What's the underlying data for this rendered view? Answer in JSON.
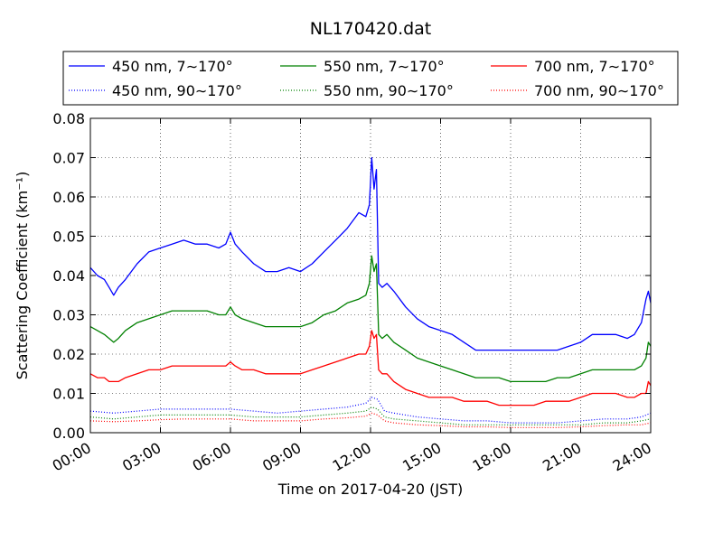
{
  "chart_data": {
    "type": "line",
    "title": "NL170420.dat",
    "xlabel": "Time on 2017-04-20 (JST)",
    "ylabel": "Scattering Coefficient (km⁻¹)",
    "x_unit": "hours",
    "xlim": [
      0,
      24
    ],
    "ylim": [
      0,
      0.08
    ],
    "grid": true,
    "legend_position": "top",
    "x_ticks": [
      {
        "value": 0,
        "label": "00:00"
      },
      {
        "value": 3,
        "label": "03:00"
      },
      {
        "value": 6,
        "label": "06:00"
      },
      {
        "value": 9,
        "label": "09:00"
      },
      {
        "value": 12,
        "label": "12:00"
      },
      {
        "value": 15,
        "label": "15:00"
      },
      {
        "value": 18,
        "label": "18:00"
      },
      {
        "value": 21,
        "label": "21:00"
      },
      {
        "value": 24,
        "label": "24:00"
      }
    ],
    "y_ticks": [
      {
        "value": 0,
        "label": "0.00"
      },
      {
        "value": 0.01,
        "label": "0.01"
      },
      {
        "value": 0.02,
        "label": "0.02"
      },
      {
        "value": 0.03,
        "label": "0.03"
      },
      {
        "value": 0.04,
        "label": "0.04"
      },
      {
        "value": 0.05,
        "label": "0.05"
      },
      {
        "value": 0.06,
        "label": "0.06"
      },
      {
        "value": 0.07,
        "label": "0.07"
      },
      {
        "value": 0.08,
        "label": "0.08"
      }
    ],
    "series": [
      {
        "name": "450 nm, 7∼170°",
        "color": "#0000ff",
        "style": "solid",
        "x": [
          0,
          0.3,
          0.6,
          0.8,
          1.0,
          1.2,
          1.5,
          2.0,
          2.5,
          3.0,
          3.5,
          4.0,
          4.5,
          5.0,
          5.5,
          5.8,
          6.0,
          6.2,
          6.5,
          7.0,
          7.5,
          8.0,
          8.5,
          9.0,
          9.5,
          10.0,
          10.5,
          11.0,
          11.5,
          11.8,
          11.95,
          12.05,
          12.15,
          12.25,
          12.35,
          12.5,
          12.7,
          13.0,
          13.5,
          14.0,
          14.5,
          15.0,
          15.5,
          16.0,
          16.5,
          17.0,
          17.5,
          18.0,
          18.5,
          19.0,
          19.5,
          20.0,
          20.5,
          21.0,
          21.5,
          22.0,
          22.5,
          23.0,
          23.3,
          23.6,
          23.8,
          23.9,
          24.0
        ],
        "y": [
          0.042,
          0.04,
          0.039,
          0.037,
          0.035,
          0.037,
          0.039,
          0.043,
          0.046,
          0.047,
          0.048,
          0.049,
          0.048,
          0.048,
          0.047,
          0.048,
          0.051,
          0.048,
          0.046,
          0.043,
          0.041,
          0.041,
          0.042,
          0.041,
          0.043,
          0.046,
          0.049,
          0.052,
          0.056,
          0.055,
          0.058,
          0.07,
          0.062,
          0.067,
          0.038,
          0.037,
          0.038,
          0.036,
          0.032,
          0.029,
          0.027,
          0.026,
          0.025,
          0.023,
          0.021,
          0.021,
          0.021,
          0.021,
          0.021,
          0.021,
          0.021,
          0.021,
          0.022,
          0.023,
          0.025,
          0.025,
          0.025,
          0.024,
          0.025,
          0.028,
          0.034,
          0.036,
          0.033
        ]
      },
      {
        "name": "550 nm, 7∼170°",
        "color": "#008000",
        "style": "solid",
        "x": [
          0,
          0.3,
          0.6,
          0.8,
          1.0,
          1.2,
          1.5,
          2.0,
          2.5,
          3.0,
          3.5,
          4.0,
          4.5,
          5.0,
          5.5,
          5.8,
          6.0,
          6.2,
          6.5,
          7.0,
          7.5,
          8.0,
          8.5,
          9.0,
          9.5,
          10.0,
          10.5,
          11.0,
          11.5,
          11.8,
          11.95,
          12.05,
          12.15,
          12.25,
          12.35,
          12.5,
          12.7,
          13.0,
          13.5,
          14.0,
          14.5,
          15.0,
          15.5,
          16.0,
          16.5,
          17.0,
          17.5,
          18.0,
          18.5,
          19.0,
          19.5,
          20.0,
          20.5,
          21.0,
          21.5,
          22.0,
          22.5,
          23.0,
          23.3,
          23.6,
          23.8,
          23.9,
          24.0
        ],
        "y": [
          0.027,
          0.026,
          0.025,
          0.024,
          0.023,
          0.024,
          0.026,
          0.028,
          0.029,
          0.03,
          0.031,
          0.031,
          0.031,
          0.031,
          0.03,
          0.03,
          0.032,
          0.03,
          0.029,
          0.028,
          0.027,
          0.027,
          0.027,
          0.027,
          0.028,
          0.03,
          0.031,
          0.033,
          0.034,
          0.035,
          0.038,
          0.045,
          0.041,
          0.043,
          0.025,
          0.024,
          0.025,
          0.023,
          0.021,
          0.019,
          0.018,
          0.017,
          0.016,
          0.015,
          0.014,
          0.014,
          0.014,
          0.013,
          0.013,
          0.013,
          0.013,
          0.014,
          0.014,
          0.015,
          0.016,
          0.016,
          0.016,
          0.016,
          0.016,
          0.017,
          0.019,
          0.023,
          0.022
        ]
      },
      {
        "name": "700 nm, 7∼170°",
        "color": "#ff0000",
        "style": "solid",
        "x": [
          0,
          0.3,
          0.6,
          0.8,
          1.0,
          1.2,
          1.5,
          2.0,
          2.5,
          3.0,
          3.5,
          4.0,
          4.5,
          5.0,
          5.5,
          5.8,
          6.0,
          6.2,
          6.5,
          7.0,
          7.5,
          8.0,
          8.5,
          9.0,
          9.5,
          10.0,
          10.5,
          11.0,
          11.5,
          11.8,
          11.95,
          12.05,
          12.15,
          12.25,
          12.35,
          12.5,
          12.7,
          13.0,
          13.5,
          14.0,
          14.5,
          15.0,
          15.5,
          16.0,
          16.5,
          17.0,
          17.5,
          18.0,
          18.5,
          19.0,
          19.5,
          20.0,
          20.5,
          21.0,
          21.5,
          22.0,
          22.5,
          23.0,
          23.3,
          23.6,
          23.8,
          23.9,
          24.0
        ],
        "y": [
          0.015,
          0.014,
          0.014,
          0.013,
          0.013,
          0.013,
          0.014,
          0.015,
          0.016,
          0.016,
          0.017,
          0.017,
          0.017,
          0.017,
          0.017,
          0.017,
          0.018,
          0.017,
          0.016,
          0.016,
          0.015,
          0.015,
          0.015,
          0.015,
          0.016,
          0.017,
          0.018,
          0.019,
          0.02,
          0.02,
          0.022,
          0.026,
          0.024,
          0.025,
          0.016,
          0.015,
          0.015,
          0.013,
          0.011,
          0.01,
          0.009,
          0.009,
          0.009,
          0.008,
          0.008,
          0.008,
          0.007,
          0.007,
          0.007,
          0.007,
          0.008,
          0.008,
          0.008,
          0.009,
          0.01,
          0.01,
          0.01,
          0.009,
          0.009,
          0.01,
          0.01,
          0.013,
          0.012
        ]
      },
      {
        "name": "450 nm, 90∼170°",
        "color": "#0000ff",
        "style": "dotted",
        "x": [
          0,
          1.0,
          2.0,
          3.0,
          4.0,
          5.0,
          6.0,
          7.0,
          8.0,
          9.0,
          10.0,
          11.0,
          11.8,
          12.05,
          12.3,
          12.6,
          13.0,
          14.0,
          15.0,
          16.0,
          17.0,
          18.0,
          19.0,
          20.0,
          21.0,
          22.0,
          23.0,
          23.6,
          24.0
        ],
        "y": [
          0.0055,
          0.005,
          0.0055,
          0.006,
          0.006,
          0.006,
          0.006,
          0.0055,
          0.005,
          0.0055,
          0.006,
          0.0065,
          0.0075,
          0.009,
          0.0085,
          0.0055,
          0.005,
          0.004,
          0.0035,
          0.003,
          0.003,
          0.0025,
          0.0025,
          0.0025,
          0.003,
          0.0035,
          0.0035,
          0.004,
          0.005
        ]
      },
      {
        "name": "550 nm, 90∼170°",
        "color": "#008000",
        "style": "dotted",
        "x": [
          0,
          1.0,
          2.0,
          3.0,
          4.0,
          5.0,
          6.0,
          7.0,
          8.0,
          9.0,
          10.0,
          11.0,
          11.8,
          12.05,
          12.3,
          12.6,
          13.0,
          14.0,
          15.0,
          16.0,
          17.0,
          18.0,
          19.0,
          20.0,
          21.0,
          22.0,
          23.0,
          23.6,
          24.0
        ],
        "y": [
          0.004,
          0.0035,
          0.004,
          0.0045,
          0.0045,
          0.0045,
          0.0045,
          0.004,
          0.004,
          0.004,
          0.0045,
          0.005,
          0.0055,
          0.0065,
          0.006,
          0.004,
          0.0035,
          0.003,
          0.0025,
          0.002,
          0.002,
          0.002,
          0.002,
          0.002,
          0.002,
          0.0025,
          0.0025,
          0.003,
          0.0035
        ]
      },
      {
        "name": "700 nm, 90∼170°",
        "color": "#ff0000",
        "style": "dotted",
        "x": [
          0,
          1.0,
          2.0,
          3.0,
          4.0,
          5.0,
          6.0,
          7.0,
          8.0,
          9.0,
          10.0,
          11.0,
          11.8,
          12.05,
          12.3,
          12.6,
          13.0,
          14.0,
          15.0,
          16.0,
          17.0,
          18.0,
          19.0,
          20.0,
          21.0,
          22.0,
          23.0,
          23.6,
          24.0
        ],
        "y": [
          0.003,
          0.0028,
          0.003,
          0.0033,
          0.0035,
          0.0035,
          0.0035,
          0.003,
          0.003,
          0.003,
          0.0035,
          0.0038,
          0.0042,
          0.005,
          0.0045,
          0.003,
          0.0025,
          0.002,
          0.0018,
          0.0015,
          0.0015,
          0.0013,
          0.0013,
          0.0013,
          0.0015,
          0.0018,
          0.002,
          0.002,
          0.0025
        ]
      }
    ]
  }
}
